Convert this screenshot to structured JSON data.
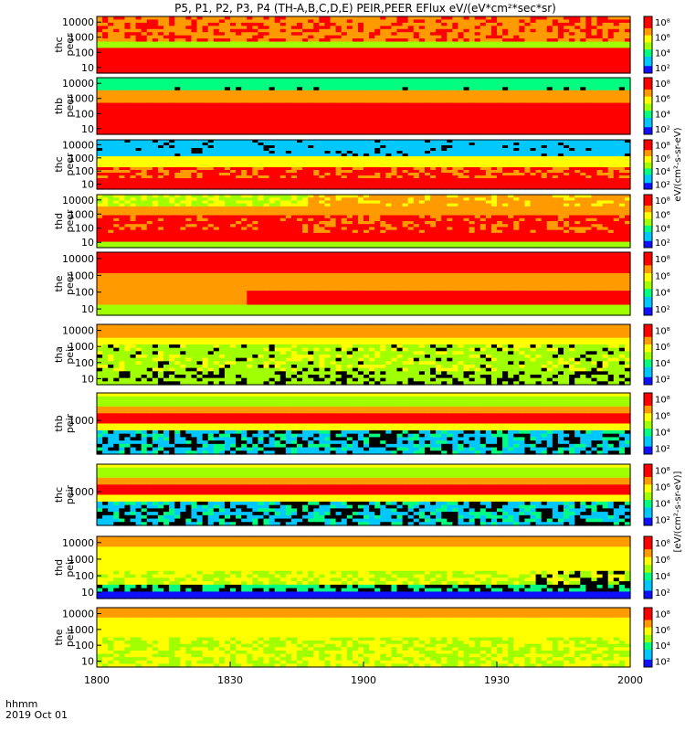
{
  "title": "P5, P1, P2, P3, P4 (TH-A,B,C,D,E) PEIR,PEER EFlux eV/(eV*cm²*sec*sr)",
  "chart_data": [
    {
      "type": "heatmap",
      "label": "thc peer",
      "ylabel": [
        "thc",
        "peer"
      ],
      "yticks": [
        "10000",
        "1000",
        "100",
        "10"
      ],
      "cbar": [
        "10⁸",
        "10⁶",
        "10⁴",
        "10²"
      ],
      "pattern": "peer-c"
    },
    {
      "type": "heatmap",
      "label": "thb peer",
      "ylabel": [
        "thb",
        "peer"
      ],
      "yticks": [
        "10000",
        "1000",
        "100",
        "10"
      ],
      "cbar": [
        "10⁸",
        "10⁶",
        "10⁴",
        "10²"
      ],
      "pattern": "peer-b"
    },
    {
      "type": "heatmap",
      "label": "thc peer",
      "ylabel": [
        "thc",
        "peer"
      ],
      "yticks": [
        "10000",
        "1000",
        "100",
        "10"
      ],
      "cbar": [
        "10⁸",
        "10⁶",
        "10⁴",
        "10²"
      ],
      "pattern": "peer-b2"
    },
    {
      "type": "heatmap",
      "label": "thd peer",
      "ylabel": [
        "thd",
        "peer"
      ],
      "yticks": [
        "10000",
        "1000",
        "100",
        "10"
      ],
      "cbar": [
        "10⁸",
        "10⁶",
        "10⁴",
        "10²"
      ],
      "pattern": "peer-d"
    },
    {
      "type": "heatmap",
      "label": "the peer",
      "ylabel": [
        "the",
        "peer"
      ],
      "yticks": [
        "10000",
        "1000",
        "100",
        "10"
      ],
      "cbar": [
        "10⁸",
        "10⁶",
        "10⁴",
        "10²"
      ],
      "pattern": "peer-e"
    },
    {
      "type": "heatmap",
      "label": "tha peir",
      "ylabel": [
        "tha",
        "peir"
      ],
      "yticks": [
        "10000",
        "1000",
        "100",
        "10"
      ],
      "cbar": [
        "10⁸",
        "10⁶",
        "10⁴",
        "10²"
      ],
      "pattern": "peir-a"
    },
    {
      "type": "heatmap",
      "label": "thb peir",
      "ylabel": [
        "thb",
        "peir"
      ],
      "yticks": [
        "1000"
      ],
      "cbar": [
        "10⁸",
        "10⁶",
        "10⁴",
        "10²"
      ],
      "pattern": "peir-b"
    },
    {
      "type": "heatmap",
      "label": "thc peir",
      "ylabel": [
        "thc",
        "peir"
      ],
      "yticks": [
        "1000"
      ],
      "cbar": [
        "10⁸",
        "10⁶",
        "10⁴",
        "10²"
      ],
      "pattern": "peir-b"
    },
    {
      "type": "heatmap",
      "label": "thd peir",
      "ylabel": [
        "thd",
        "peir"
      ],
      "yticks": [
        "10000",
        "1000",
        "100",
        "10"
      ],
      "cbar": [
        "10⁸",
        "10⁶",
        "10⁴",
        "10²"
      ],
      "pattern": "peir-d"
    },
    {
      "type": "heatmap",
      "label": "the peir",
      "ylabel": [
        "the",
        "peir"
      ],
      "yticks": [
        "10000",
        "1000",
        "100",
        "10"
      ],
      "cbar": [
        "10⁸",
        "10⁶",
        "10⁴",
        "10²"
      ],
      "pattern": "peir-e"
    }
  ],
  "xaxis": {
    "ticks": [
      "1800",
      "1830",
      "1900",
      "1930",
      "2000"
    ],
    "label1": "hhmm",
    "label2": "2019 Oct 01"
  },
  "cbar_unit_peer": "eV/(cm²-s-sr-eV)",
  "cbar_unit_peir": "[eV/(cm²-s-sr-eV)]"
}
